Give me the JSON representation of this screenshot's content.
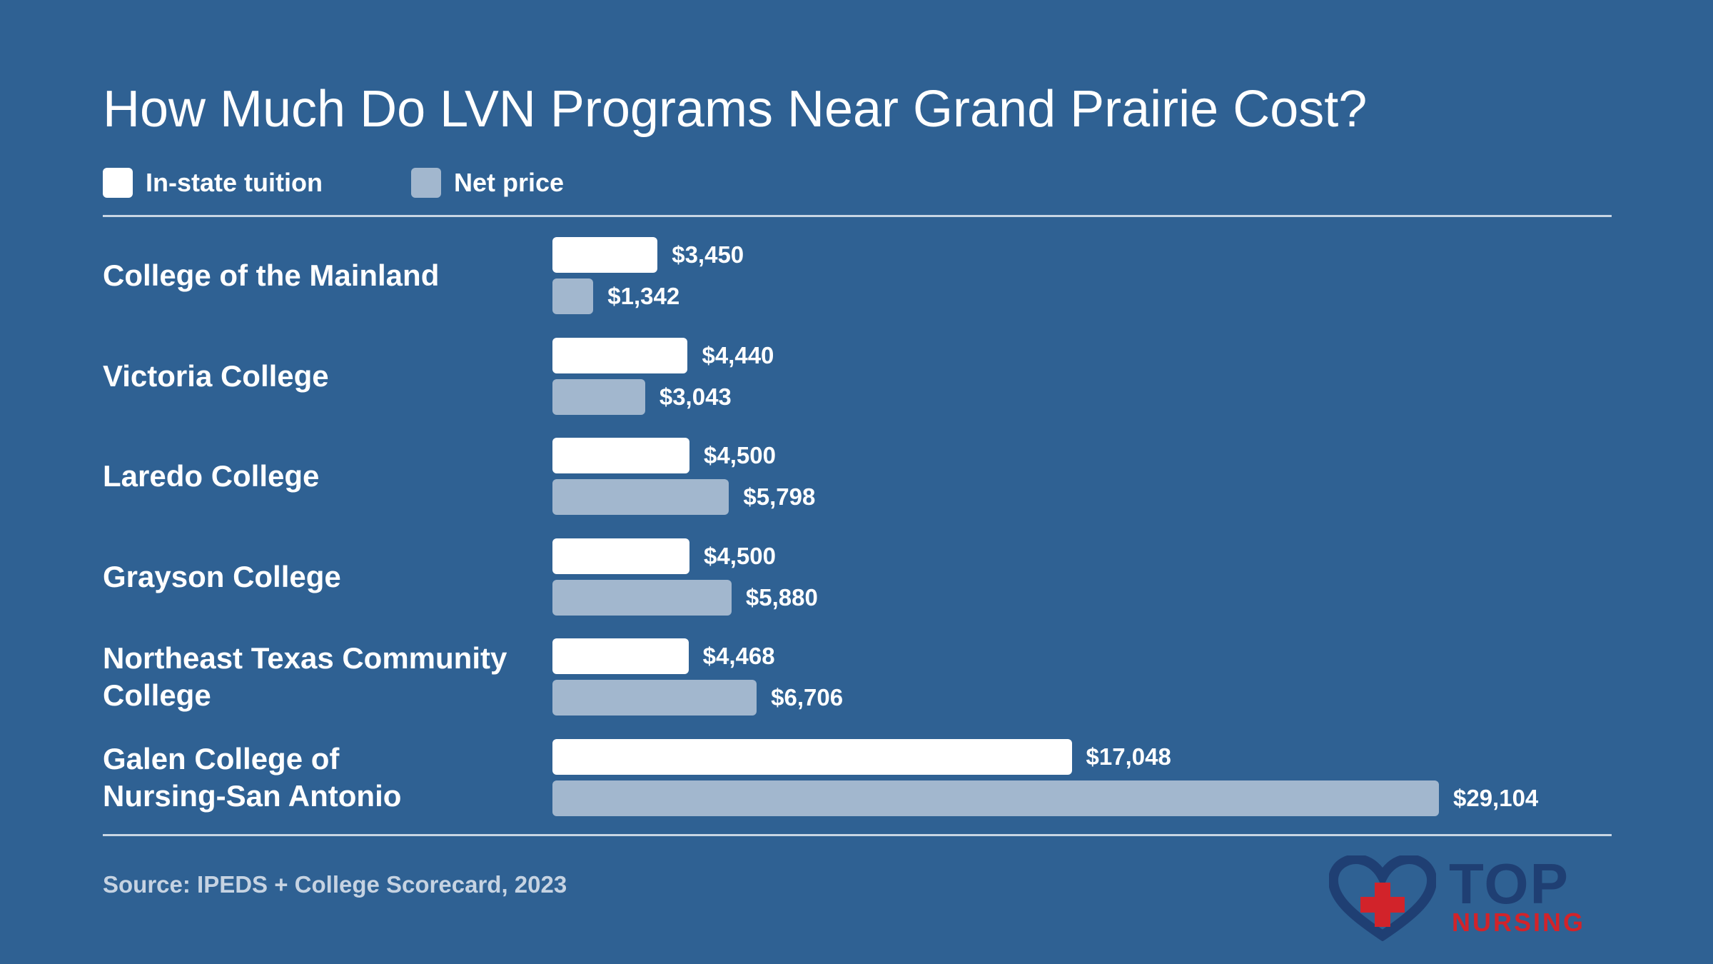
{
  "header": {
    "title": "How Much Do LVN Programs Near Grand Prairie Cost?"
  },
  "legend": {
    "tuition_label": "In-state tuition",
    "net_label": "Net price"
  },
  "colors": {
    "background": "#2f6193",
    "tuition_bar": "#ffffff",
    "net_bar": "#a2b7ce"
  },
  "chart_data": {
    "type": "bar",
    "orientation": "horizontal",
    "title": "How Much Do LVN Programs Near Grand Prairie Cost?",
    "categories": [
      "College of the Mainland",
      "Victoria College",
      "Laredo College",
      "Grayson College",
      "Northeast Texas Community College",
      "Galen College of Nursing-San Antonio"
    ],
    "series": [
      {
        "name": "In-state tuition",
        "values": [
          3450,
          4440,
          4500,
          4500,
          4468,
          17048
        ],
        "labels": [
          "$3,450",
          "$4,440",
          "$4,500",
          "$4,500",
          "$4,468",
          "$17,048"
        ]
      },
      {
        "name": "Net price",
        "values": [
          1342,
          3043,
          5798,
          5880,
          6706,
          29104
        ],
        "labels": [
          "$1,342",
          "$3,043",
          "$5,798",
          "$5,880",
          "$6,706",
          "$29,104"
        ]
      }
    ],
    "legend_position": "top-left",
    "grid": false
  },
  "footer": {
    "source": "Source: IPEDS + College Scorecard, 2023"
  },
  "logo": {
    "icon": "heart-cross-icon",
    "line1": "TOP",
    "line2": "NURSING"
  }
}
